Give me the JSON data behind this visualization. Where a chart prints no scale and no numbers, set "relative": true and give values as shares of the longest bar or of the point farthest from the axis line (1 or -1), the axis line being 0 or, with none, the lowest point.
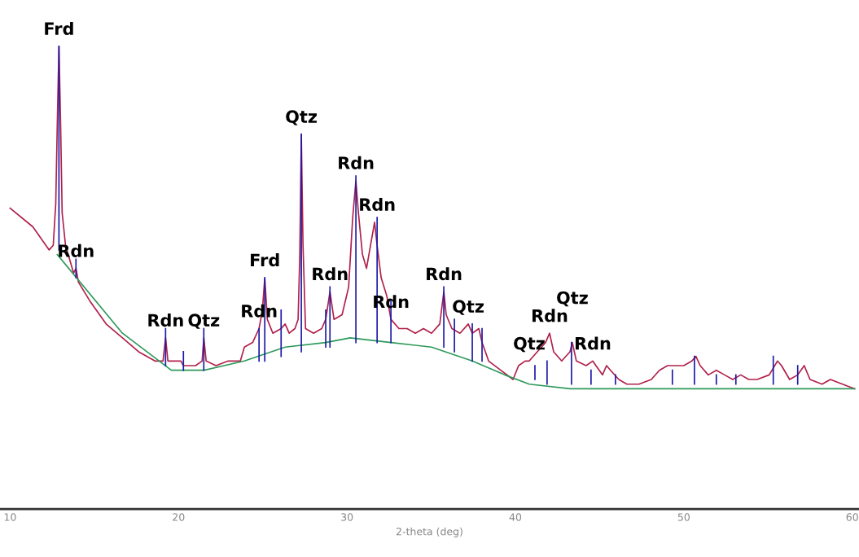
{
  "chart_data": {
    "type": "line",
    "relative": true,
    "xlabel": "2-theta (deg)",
    "xlim": [
      9.4,
      60.4
    ],
    "xticks": [
      10,
      20,
      30,
      40,
      50,
      60
    ],
    "tick_labels": "x",
    "grid": false,
    "series": [
      {
        "color": "#b0204a",
        "x": [
          10.0,
          11.35,
          12.32,
          12.56,
          12.71,
          12.8,
          12.9,
          13.0,
          13.09,
          13.29,
          13.53,
          13.77,
          13.91,
          14.06,
          14.73,
          15.7,
          16.67,
          17.63,
          18.6,
          19.08,
          19.23,
          19.37,
          19.81,
          20.14,
          20.29,
          21.01,
          21.4,
          21.5,
          21.64,
          22.22,
          22.95,
          23.67,
          23.91,
          24.4,
          24.78,
          24.98,
          25.12,
          25.27,
          25.6,
          26.09,
          26.33,
          26.57,
          26.91,
          27.1,
          27.2,
          27.29,
          27.39,
          27.54,
          28.02,
          28.5,
          28.74,
          28.99,
          29.23,
          29.71,
          30.1,
          30.34,
          30.53,
          30.68,
          30.92,
          31.16,
          31.4,
          31.64,
          31.79,
          32.03,
          32.37,
          32.61,
          33.09,
          33.57,
          34.06,
          34.54,
          35.02,
          35.51,
          35.75,
          35.89,
          36.23,
          36.71,
          37.2,
          37.44,
          37.83,
          38.02,
          38.41,
          39.13,
          39.86,
          40.19,
          40.58,
          40.82,
          41.3,
          41.79,
          42.03,
          42.27,
          42.75,
          43.24,
          43.38,
          43.62,
          44.2,
          44.59,
          44.78,
          45.17,
          45.41,
          45.65,
          46.14,
          46.62,
          47.34,
          48.07,
          48.55,
          49.03,
          49.52,
          50.0,
          50.48,
          50.72,
          50.97,
          51.45,
          51.93,
          52.42,
          52.9,
          53.38,
          53.86,
          54.35,
          55.07,
          55.56,
          55.8,
          56.28,
          56.76,
          57.15,
          57.49,
          58.21,
          58.7,
          59.42,
          60.14
        ],
        "values": [
          0.65,
          0.61,
          0.56,
          0.57,
          0.66,
          0.83,
          1.0,
          0.83,
          0.64,
          0.57,
          0.54,
          0.51,
          0.52,
          0.49,
          0.45,
          0.4,
          0.37,
          0.34,
          0.32,
          0.32,
          0.37,
          0.32,
          0.32,
          0.32,
          0.31,
          0.31,
          0.32,
          0.37,
          0.32,
          0.31,
          0.32,
          0.32,
          0.35,
          0.36,
          0.39,
          0.43,
          0.5,
          0.41,
          0.38,
          0.39,
          0.4,
          0.38,
          0.39,
          0.41,
          0.55,
          0.81,
          0.57,
          0.39,
          0.38,
          0.39,
          0.41,
          0.47,
          0.41,
          0.42,
          0.48,
          0.63,
          0.71,
          0.64,
          0.55,
          0.52,
          0.57,
          0.62,
          0.57,
          0.5,
          0.46,
          0.41,
          0.39,
          0.39,
          0.38,
          0.39,
          0.38,
          0.4,
          0.47,
          0.42,
          0.39,
          0.38,
          0.4,
          0.38,
          0.39,
          0.36,
          0.32,
          0.3,
          0.28,
          0.31,
          0.32,
          0.32,
          0.34,
          0.36,
          0.38,
          0.34,
          0.32,
          0.34,
          0.36,
          0.32,
          0.31,
          0.32,
          0.31,
          0.29,
          0.31,
          0.3,
          0.28,
          0.27,
          0.27,
          0.28,
          0.3,
          0.31,
          0.31,
          0.31,
          0.32,
          0.33,
          0.31,
          0.29,
          0.3,
          0.29,
          0.28,
          0.29,
          0.28,
          0.28,
          0.29,
          0.32,
          0.31,
          0.28,
          0.29,
          0.31,
          0.28,
          0.27,
          0.28,
          0.27,
          0.26
        ]
      },
      {
        "color": "#2e9a5a",
        "x": [
          12.8,
          16.67,
          19.57,
          21.5,
          23.91,
          26.33,
          28.74,
          30.19,
          32.61,
          35.02,
          37.44,
          39.37,
          40.82,
          43.24,
          48.07,
          60.14
        ],
        "values": [
          0.55,
          0.38,
          0.3,
          0.3,
          0.32,
          0.35,
          0.36,
          0.37,
          0.36,
          0.35,
          0.32,
          0.29,
          0.27,
          0.26,
          0.26,
          0.26
        ]
      },
      {
        "color": "#1a1aa8",
        "x": [
          12.9,
          12.9,
          null,
          13.91,
          13.91,
          null,
          19.23,
          19.23,
          null,
          20.29,
          20.29,
          null,
          21.5,
          21.5,
          null,
          24.78,
          24.78,
          null,
          25.12,
          25.12,
          null,
          26.09,
          26.09,
          null,
          27.29,
          27.29,
          null,
          28.74,
          28.74,
          null,
          28.99,
          28.99,
          null,
          30.53,
          30.53,
          null,
          31.79,
          31.79,
          null,
          32.61,
          32.61,
          null,
          35.75,
          35.75,
          null,
          36.38,
          36.38,
          null,
          37.44,
          37.44,
          null,
          38.02,
          38.02,
          null,
          41.16,
          41.16,
          null,
          41.88,
          41.88,
          null,
          43.33,
          43.33,
          null,
          44.49,
          44.49,
          null,
          45.94,
          45.94,
          null,
          49.32,
          49.32,
          null,
          50.63,
          50.63,
          null,
          51.93,
          51.93,
          null,
          53.09,
          53.09,
          null,
          55.31,
          55.31,
          null,
          56.76,
          56.76
        ],
        "values": [
          0.56,
          1.0,
          null,
          0.5,
          0.54,
          null,
          0.31,
          0.39,
          null,
          0.3,
          0.34,
          null,
          0.3,
          0.39,
          null,
          0.32,
          0.39,
          null,
          0.32,
          0.5,
          null,
          0.33,
          0.43,
          null,
          0.34,
          0.81,
          null,
          0.35,
          0.43,
          null,
          0.35,
          0.48,
          null,
          0.36,
          0.72,
          null,
          0.36,
          0.63,
          null,
          0.36,
          0.45,
          null,
          0.35,
          0.48,
          null,
          0.34,
          0.41,
          null,
          0.32,
          0.4,
          null,
          0.32,
          0.39,
          null,
          0.28,
          0.31,
          null,
          0.27,
          0.32,
          null,
          0.27,
          0.36,
          null,
          0.27,
          0.3,
          null,
          0.27,
          0.29,
          null,
          0.27,
          0.3,
          null,
          0.27,
          0.33,
          null,
          0.27,
          0.29,
          null,
          0.27,
          0.29,
          null,
          0.27,
          0.33,
          null,
          0.27,
          0.31
        ]
      }
    ],
    "annotations": [
      {
        "text": "Frd",
        "x": 12.9,
        "y": 1.0
      },
      {
        "text": "Rdn",
        "x": 13.91,
        "y": 0.52
      },
      {
        "text": "Rdn",
        "x": 19.23,
        "y": 0.37
      },
      {
        "text": "Qtz",
        "x": 21.5,
        "y": 0.37
      },
      {
        "text": "Rdn",
        "x": 24.78,
        "y": 0.39
      },
      {
        "text": "Frd",
        "x": 25.12,
        "y": 0.5
      },
      {
        "text": "Qtz",
        "x": 27.29,
        "y": 0.81
      },
      {
        "text": "Rdn",
        "x": 28.99,
        "y": 0.47
      },
      {
        "text": "Rdn",
        "x": 30.53,
        "y": 0.71
      },
      {
        "text": "Rdn",
        "x": 31.79,
        "y": 0.62
      },
      {
        "text": "Rdn",
        "x": 32.61,
        "y": 0.41
      },
      {
        "text": "Rdn",
        "x": 35.75,
        "y": 0.47
      },
      {
        "text": "Qtz",
        "x": 37.2,
        "y": 0.4
      },
      {
        "text": "Qtz",
        "x": 40.82,
        "y": 0.32
      },
      {
        "text": "Rdn",
        "x": 42.03,
        "y": 0.38
      },
      {
        "text": "Qtz",
        "x": 43.38,
        "y": 0.36
      },
      {
        "text": "Rdn",
        "x": 44.59,
        "y": 0.32
      }
    ]
  }
}
